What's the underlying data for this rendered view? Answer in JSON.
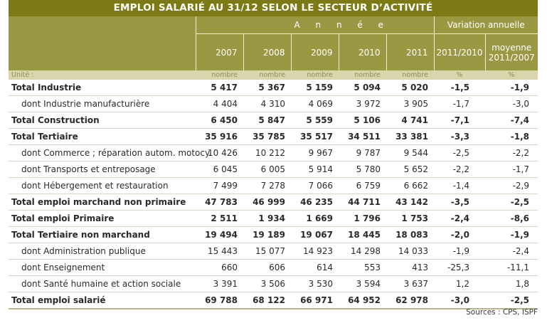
{
  "title": "EMPLOI SALARIÉ AU 31/12 SELON LE SECTEUR D’ACTIVITÉ",
  "header": {
    "group_annee": "A n n é e",
    "group_variation": "Variation annuelle",
    "years": [
      "2007",
      "2008",
      "2009",
      "2010",
      "2011"
    ],
    "var1": "2011/2010",
    "var2_line1": "moyenne",
    "var2_line2": "2011/2007"
  },
  "unit_row": {
    "label": "Unité :",
    "units": [
      "nombre",
      "nombre",
      "nombre",
      "nombre",
      "nombre",
      "%",
      "%"
    ]
  },
  "rows": [
    {
      "label": "Total Industrie",
      "bold": true,
      "values": [
        "5 417",
        "5 367",
        "5 159",
        "5 094",
        "5 020"
      ],
      "var1": "-1,5",
      "var2": "-1,9"
    },
    {
      "label": "dont Industrie manufacturière",
      "bold": false,
      "values": [
        "4 404",
        "4 310",
        "4 069",
        "3 972",
        "3 905"
      ],
      "var1": "-1,7",
      "var2": "-3,0"
    },
    {
      "label": "Total Construction",
      "bold": true,
      "values": [
        "6 450",
        "5 847",
        "5 559",
        "5 106",
        "4 741"
      ],
      "var1": "-7,1",
      "var2": "-7,4"
    },
    {
      "label": "Total Tertiaire",
      "bold": true,
      "values": [
        "35 916",
        "35 785",
        "35 517",
        "34 511",
        "33 381"
      ],
      "var1": "-3,3",
      "var2": "-1,8"
    },
    {
      "label": "dont Commerce ; réparation autom. motocy.",
      "bold": false,
      "values": [
        "10 426",
        "10 212",
        "9 967",
        "9 787",
        "9 544"
      ],
      "var1": "-2,5",
      "var2": "-2,2"
    },
    {
      "label": "dont Transports et entreposage",
      "bold": false,
      "values": [
        "6 045",
        "6 005",
        "5 914",
        "5 780",
        "5 652"
      ],
      "var1": "-2,2",
      "var2": "-1,7"
    },
    {
      "label": "dont Hébergement et restauration",
      "bold": false,
      "values": [
        "7 499",
        "7 278",
        "7 066",
        "6 759",
        "6 662"
      ],
      "var1": "-1,4",
      "var2": "-2,9"
    },
    {
      "label": "Total emploi marchand non primaire",
      "bold": true,
      "values": [
        "47 783",
        "46 999",
        "46 235",
        "44 711",
        "43 142"
      ],
      "var1": "-3,5",
      "var2": "-2,5"
    },
    {
      "label": "Total emploi Primaire",
      "bold": true,
      "values": [
        "2 511",
        "1 934",
        "1 669",
        "1 796",
        "1 753"
      ],
      "var1": "-2,4",
      "var2": "-8,6"
    },
    {
      "label": "Total Tertiaire non marchand",
      "bold": true,
      "values": [
        "19 494",
        "19 189",
        "19 067",
        "18 445",
        "18 083"
      ],
      "var1": "-2,0",
      "var2": "-1,9"
    },
    {
      "label": "dont Administration publique",
      "bold": false,
      "values": [
        "15 443",
        "15 077",
        "14 923",
        "14 298",
        "14 033"
      ],
      "var1": "-1,9",
      "var2": "-2,4"
    },
    {
      "label": "dont Enseignement",
      "bold": false,
      "values": [
        "660",
        "606",
        "614",
        "553",
        "413"
      ],
      "var1": "-25,3",
      "var2": "-11,1"
    },
    {
      "label": "dont Santé humaine et action sociale",
      "bold": false,
      "values": [
        "3 391",
        "3 506",
        "3 530",
        "3 594",
        "3 637"
      ],
      "var1": "1,2",
      "var2": "1,8"
    },
    {
      "label": "Total emploi salarié",
      "bold": true,
      "values": [
        "69 788",
        "68 122",
        "66 971",
        "64 952",
        "62 978"
      ],
      "var1": "-3,0",
      "var2": "-2,5"
    }
  ],
  "source": "Sources : CPS, ISPF",
  "colors": {
    "title_bg": "#7b7a17",
    "header_bg": "#9a9843",
    "unit_bg": "#d9d6ad"
  }
}
